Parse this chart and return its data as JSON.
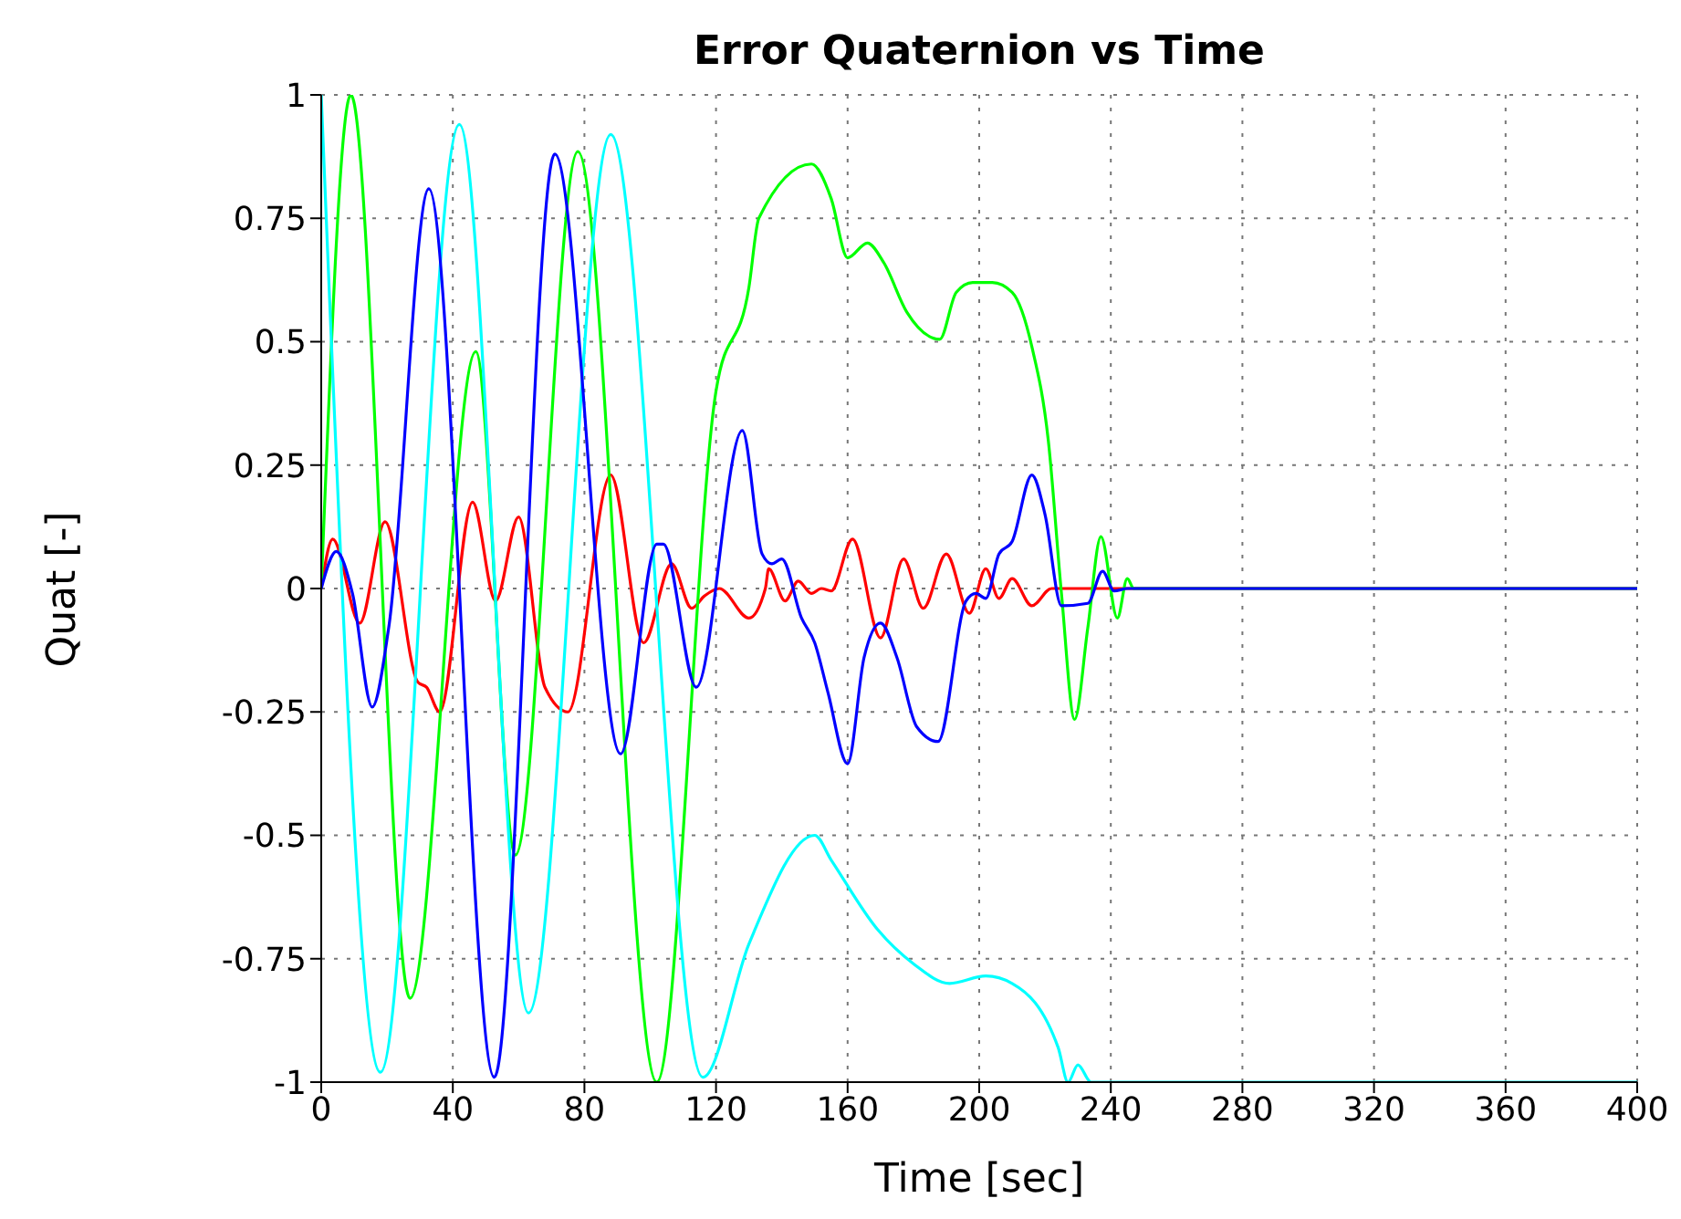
{
  "chart_data": {
    "type": "line",
    "title": "Error Quaternion vs Time",
    "xlabel": "Time [sec]",
    "ylabel": "Quat [-]",
    "xlim": [
      0,
      400
    ],
    "xticks": [
      0,
      40,
      80,
      120,
      160,
      200,
      240,
      280,
      320,
      360,
      400
    ],
    "ylim": [
      -1,
      1
    ],
    "yticks": [
      -1,
      -0.75,
      -0.5,
      -0.25,
      0,
      0.25,
      0.5,
      0.75,
      1
    ],
    "grid": true,
    "legend": false,
    "series": [
      {
        "color": "#ff0000",
        "x": [
          0,
          3.5,
          11.7,
          19.4,
          29.4,
          32,
          36,
          46,
          53,
          60,
          68,
          75,
          88,
          98,
          106.5,
          112.6,
          116.5,
          121,
          130,
          135,
          136,
          141,
          145,
          149,
          152,
          155,
          161.5,
          170,
          177,
          183,
          190,
          197,
          202,
          206,
          210,
          216,
          222,
          240,
          400
        ],
        "values": [
          0,
          0.1,
          -0.07,
          0.135,
          -0.19,
          -0.2,
          -0.25,
          0.175,
          -0.025,
          0.145,
          -0.2,
          -0.25,
          0.23,
          -0.11,
          0.05,
          -0.04,
          -0.015,
          0,
          -0.06,
          0,
          0.04,
          -0.025,
          0.015,
          -0.01,
          0,
          -0.005,
          0.1,
          -0.1,
          0.06,
          -0.04,
          0.07,
          -0.05,
          0.04,
          -0.02,
          0.02,
          -0.035,
          0,
          0,
          0
        ]
      },
      {
        "color": "#00ff00",
        "x": [
          0,
          9,
          27,
          47,
          59,
          78,
          102,
          120,
          130,
          133,
          149,
          155,
          160,
          166,
          171,
          178,
          188,
          193,
          198,
          204,
          210,
          216,
          221,
          225,
          229,
          233,
          237,
          242,
          245,
          247,
          400
        ],
        "values": [
          0,
          1,
          -0.83,
          0.48,
          -0.54,
          0.885,
          -1,
          0.4,
          0.61,
          0.75,
          0.86,
          0.79,
          0.67,
          0.7,
          0.66,
          0.56,
          0.505,
          0.6,
          0.62,
          0.62,
          0.6,
          0.49,
          0.3,
          -0.01,
          -0.265,
          -0.08,
          0.105,
          -0.06,
          0.02,
          0,
          0
        ]
      },
      {
        "color": "#00ffff",
        "x": [
          0,
          18,
          42,
          63,
          88,
          116,
          130,
          150,
          155,
          169,
          180,
          191,
          202,
          210,
          224,
          227,
          230,
          234,
          400
        ],
        "values": [
          1,
          -0.98,
          0.94,
          -0.86,
          0.92,
          -0.99,
          -0.72,
          -0.5,
          -0.55,
          -0.69,
          -0.76,
          -0.8,
          -0.785,
          -0.8,
          -0.93,
          -1,
          -0.965,
          -1,
          -1
        ]
      },
      {
        "color": "#0000ff",
        "x": [
          0,
          4.6,
          9.5,
          15.5,
          20.5,
          32.7,
          52.6,
          71,
          91,
          102,
          104,
          114,
          128,
          134,
          137,
          140,
          146,
          150,
          154,
          160,
          165,
          170,
          175,
          181,
          187.5,
          196,
          199,
          202,
          206,
          210,
          216,
          220,
          225,
          233,
          237.5,
          241,
          245,
          400
        ],
        "values": [
          0,
          0.075,
          -0.01,
          -0.24,
          -0.08,
          0.81,
          -0.99,
          0.88,
          -0.335,
          0.09,
          0.09,
          -0.2,
          0.32,
          0.07,
          0.05,
          0.06,
          -0.06,
          -0.11,
          -0.21,
          -0.355,
          -0.14,
          -0.07,
          -0.14,
          -0.28,
          -0.31,
          -0.025,
          -0.01,
          -0.02,
          0.07,
          0.095,
          0.23,
          0.15,
          -0.035,
          -0.03,
          0.035,
          -0.005,
          0,
          0
        ]
      }
    ]
  }
}
